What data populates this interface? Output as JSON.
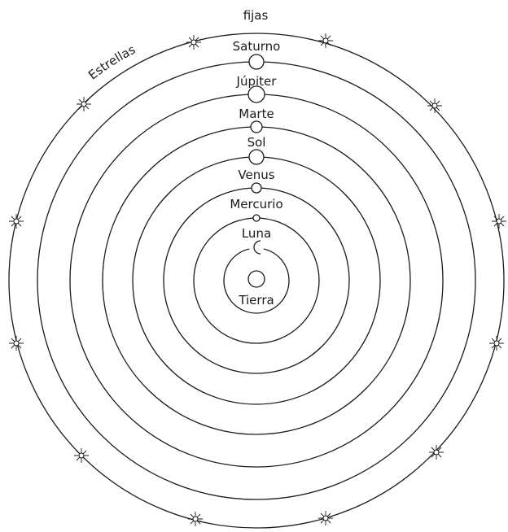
{
  "stars_label": {
    "line1": "fijas",
    "line2": "Estrellas"
  },
  "bodies": [
    {
      "key": "saturno",
      "label": "Saturno"
    },
    {
      "key": "jupiter",
      "label": "Júpiter"
    },
    {
      "key": "marte",
      "label": "Marte"
    },
    {
      "key": "sol",
      "label": "Sol"
    },
    {
      "key": "venus",
      "label": "Venus"
    },
    {
      "key": "mercurio",
      "label": "Mercurio"
    },
    {
      "key": "luna",
      "label": "Luna"
    },
    {
      "key": "tierra",
      "label": "Tierra"
    }
  ],
  "colors": {
    "stroke": "#1a1a1a",
    "background": "#ffffff"
  },
  "icons": [
    "star-icon",
    "moon-crescent-icon"
  ]
}
